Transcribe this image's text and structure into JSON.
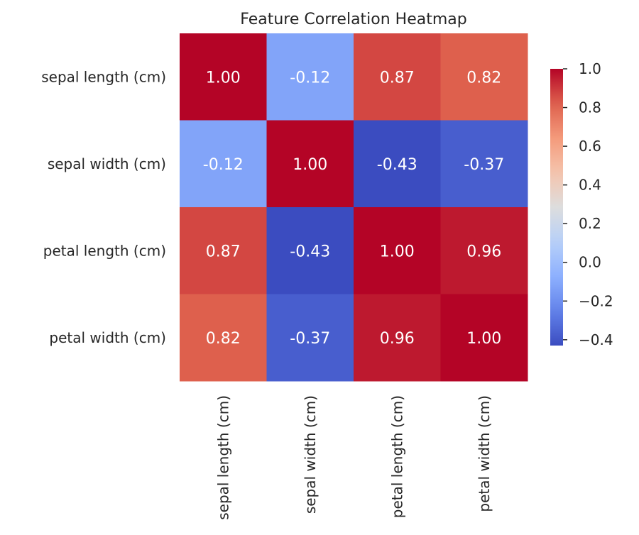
{
  "chart_data": {
    "type": "heatmap",
    "title": "Feature Correlation Heatmap",
    "x_labels": [
      "sepal length (cm)",
      "sepal width (cm)",
      "petal length (cm)",
      "petal width (cm)"
    ],
    "y_labels": [
      "sepal length (cm)",
      "sepal width (cm)",
      "petal length (cm)",
      "petal width (cm)"
    ],
    "values": [
      [
        1.0,
        -0.12,
        0.87,
        0.82
      ],
      [
        -0.12,
        1.0,
        -0.43,
        -0.37
      ],
      [
        0.87,
        -0.43,
        1.0,
        0.96
      ],
      [
        0.82,
        -0.37,
        0.96,
        1.0
      ]
    ],
    "annotations": [
      [
        "1.00",
        "-0.12",
        "0.87",
        "0.82"
      ],
      [
        "-0.12",
        "1.00",
        "-0.43",
        "-0.37"
      ],
      [
        "0.87",
        "-0.43",
        "1.00",
        "0.96"
      ],
      [
        "0.82",
        "-0.37",
        "0.96",
        "1.00"
      ]
    ],
    "colormap": "coolwarm",
    "vmin": -0.43,
    "vmax": 1.0,
    "colorbar_ticks": [
      1.0,
      0.8,
      0.6,
      0.4,
      0.2,
      0.0,
      -0.2,
      -0.4
    ],
    "colorbar_tick_labels": [
      "1.0",
      "0.8",
      "0.6",
      "0.4",
      "0.2",
      "0.0",
      "−0.2",
      "−0.4"
    ],
    "xlabel": "",
    "ylabel": ""
  }
}
